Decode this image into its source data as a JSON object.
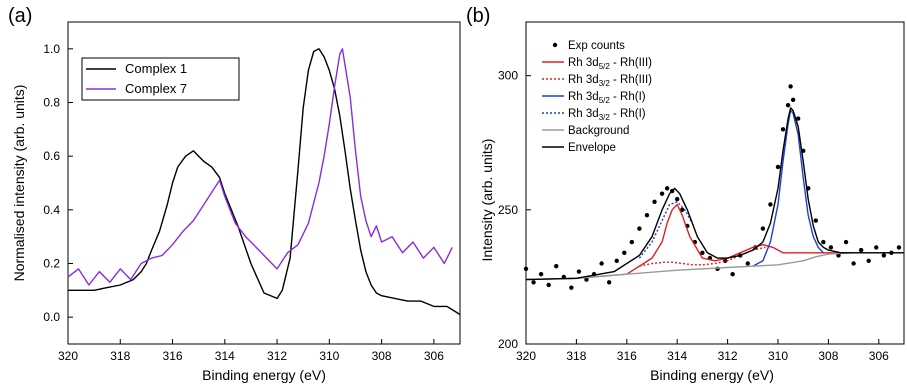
{
  "chart_data": [
    {
      "panel_label": "(a)",
      "type": "line",
      "xlabel": "Binding energy (eV)",
      "ylabel": "Normalised intensity (arb. units)",
      "xlim": [
        320,
        305
      ],
      "ylim": [
        -0.1,
        1.1
      ],
      "xticks": [
        320,
        318,
        316,
        314,
        312,
        310,
        308,
        306
      ],
      "yticks": [
        0.0,
        0.2,
        0.4,
        0.6,
        0.8,
        1.0
      ],
      "ytick_labels": [
        "0.0",
        "0.2",
        "0.4",
        "0.6",
        "0.8",
        "1.0"
      ],
      "legend_position": "top-left",
      "series": [
        {
          "name": "Complex 1",
          "color": "#000000",
          "x": [
            320,
            319.5,
            319,
            318.5,
            318,
            317.5,
            317.2,
            317,
            316.8,
            316.5,
            316.2,
            316,
            315.8,
            315.5,
            315.2,
            315,
            314.8,
            314.5,
            314.2,
            314,
            313.5,
            313,
            312.5,
            312,
            311.8,
            311.5,
            311.2,
            311,
            310.8,
            310.6,
            310.4,
            310.2,
            310,
            309.8,
            309.6,
            309.4,
            309.2,
            309,
            308.8,
            308.6,
            308.4,
            308.2,
            308,
            307.5,
            307,
            306.5,
            306,
            305.5,
            305
          ],
          "values": [
            0.1,
            0.1,
            0.1,
            0.11,
            0.12,
            0.14,
            0.17,
            0.2,
            0.25,
            0.32,
            0.42,
            0.5,
            0.56,
            0.6,
            0.62,
            0.6,
            0.58,
            0.56,
            0.52,
            0.46,
            0.34,
            0.2,
            0.09,
            0.07,
            0.1,
            0.22,
            0.55,
            0.78,
            0.92,
            0.99,
            1.0,
            0.97,
            0.92,
            0.85,
            0.75,
            0.62,
            0.48,
            0.36,
            0.25,
            0.17,
            0.12,
            0.09,
            0.08,
            0.07,
            0.06,
            0.06,
            0.04,
            0.04,
            0.01
          ]
        },
        {
          "name": "Complex 7",
          "color": "#8B2BE2",
          "x": [
            320,
            319.6,
            319.2,
            318.8,
            318.4,
            318,
            317.6,
            317.2,
            316.8,
            316.4,
            316,
            315.6,
            315.2,
            314.8,
            314.4,
            314.2,
            314,
            313.8,
            313.6,
            313.2,
            312.8,
            312.4,
            312,
            311.6,
            311.2,
            310.8,
            310.4,
            310.2,
            310,
            309.8,
            309.6,
            309.5,
            309.4,
            309.2,
            309,
            308.8,
            308.6,
            308.4,
            308.2,
            308,
            307.6,
            307.2,
            306.8,
            306.4,
            306,
            305.6,
            305.3
          ],
          "values": [
            0.15,
            0.18,
            0.12,
            0.17,
            0.13,
            0.18,
            0.14,
            0.2,
            0.22,
            0.23,
            0.27,
            0.32,
            0.36,
            0.42,
            0.48,
            0.51,
            0.45,
            0.4,
            0.35,
            0.3,
            0.26,
            0.22,
            0.18,
            0.24,
            0.27,
            0.35,
            0.5,
            0.6,
            0.72,
            0.86,
            0.98,
            1.0,
            0.94,
            0.82,
            0.62,
            0.45,
            0.36,
            0.3,
            0.34,
            0.28,
            0.3,
            0.24,
            0.28,
            0.22,
            0.26,
            0.2,
            0.26
          ]
        }
      ]
    },
    {
      "panel_label": "(b)",
      "type": "line",
      "xlabel": "Binding energy (eV)",
      "ylabel": "Intensity (arb. units)",
      "xlim": [
        320,
        305
      ],
      "ylim": [
        200,
        320
      ],
      "xticks": [
        320,
        318,
        316,
        314,
        312,
        310,
        308,
        306
      ],
      "yticks": [
        200,
        250,
        300
      ],
      "legend_position": "top-left",
      "series": [
        {
          "name": "Exp counts",
          "color": "#000000",
          "style": "points",
          "x": [
            320,
            319.7,
            319.4,
            319.1,
            318.8,
            318.5,
            318.2,
            317.9,
            317.6,
            317.3,
            317.0,
            316.7,
            316.4,
            316.1,
            315.8,
            315.5,
            315.2,
            314.9,
            314.6,
            314.4,
            314.2,
            314.0,
            313.8,
            313.6,
            313.3,
            313.0,
            312.7,
            312.4,
            312.1,
            311.8,
            311.5,
            311.2,
            310.9,
            310.6,
            310.3,
            310.0,
            309.8,
            309.6,
            309.5,
            309.4,
            309.2,
            309.0,
            308.8,
            308.5,
            308.2,
            307.9,
            307.6,
            307.3,
            307.0,
            306.7,
            306.4,
            306.1,
            305.8,
            305.5,
            305.2
          ],
          "values": [
            228,
            223,
            226,
            222,
            229,
            225,
            221,
            227,
            224,
            226,
            230,
            223,
            231,
            234,
            238,
            243,
            248,
            253,
            256,
            258,
            257,
            254,
            250,
            244,
            238,
            234,
            232,
            228,
            231,
            226,
            233,
            230,
            236,
            243,
            252,
            266,
            280,
            289,
            296,
            291,
            284,
            272,
            258,
            246,
            238,
            236,
            233,
            238,
            230,
            235,
            231,
            236,
            233,
            234,
            236
          ]
        },
        {
          "name": "Rh 3d5/2 - Rh(III)",
          "label_main": "Rh 3d",
          "label_sub": "5/2",
          "label_rest": " - Rh(III)",
          "color": "#E02020",
          "style": "solid",
          "x": [
            320,
            318,
            316,
            315,
            314.6,
            314.4,
            314.2,
            314.0,
            313.8,
            313.5,
            313.0,
            312.5,
            312,
            311.5,
            311.0,
            310.6,
            310.2,
            309.8,
            309.4,
            309,
            308.5,
            308,
            307.5,
            307,
            306,
            305
          ],
          "values": [
            224,
            224.5,
            226,
            232,
            238,
            245,
            250,
            252,
            248,
            240,
            232,
            231,
            232,
            234,
            236,
            237,
            236,
            234,
            234,
            234,
            234,
            234,
            234,
            234,
            234,
            234
          ]
        },
        {
          "name": "Rh 3d3/2 - Rh(III)",
          "label_main": "Rh 3d",
          "label_sub": "3/2",
          "label_rest": " - Rh(III)",
          "color": "#E02020",
          "style": "dotted",
          "x": [
            315.5,
            315.0,
            314.5,
            314.2,
            313.8,
            313.4,
            313,
            312.5,
            312,
            311.5,
            311,
            310.5
          ],
          "values": [
            229,
            230,
            230.5,
            230.5,
            230,
            229.5,
            229.5,
            230,
            231,
            233,
            235,
            236
          ]
        },
        {
          "name": "Rh 3d5/2 - Rh(I)",
          "label_main": "Rh 3d",
          "label_sub": "5/2",
          "label_rest": " - Rh(I)",
          "color": "#1F3FD0",
          "style": "solid",
          "x": [
            311.0,
            310.6,
            310.3,
            310.0,
            309.8,
            309.6,
            309.5,
            309.4,
            309.2,
            309.0,
            308.8,
            308.6,
            308.4,
            308.2
          ],
          "values": [
            229,
            231,
            238,
            252,
            268,
            282,
            287,
            286,
            278,
            262,
            248,
            240,
            236,
            234
          ]
        },
        {
          "name": "Rh 3d3/2 - Rh(I)",
          "label_main": "Rh 3d",
          "label_sub": "3/2",
          "label_rest": " - Rh(I)",
          "color": "#1F3FD0",
          "style": "dotted",
          "x": [
            315.5,
            315.0,
            314.6,
            314.3,
            314.0,
            313.7,
            313.4
          ],
          "values": [
            232,
            238,
            246,
            252,
            253,
            250,
            245
          ]
        },
        {
          "name": "Background",
          "color": "#9A9A9A",
          "style": "solid",
          "x": [
            320,
            318,
            316,
            314,
            312,
            311,
            310,
            309,
            308.5,
            308,
            307,
            306,
            305
          ],
          "values": [
            224,
            224.5,
            226,
            227.5,
            228.5,
            229,
            229.5,
            231,
            232.5,
            233.5,
            234,
            234,
            234
          ]
        },
        {
          "name": "Envelope",
          "color": "#000000",
          "style": "solid",
          "x": [
            320,
            318,
            316.5,
            315.5,
            315.0,
            314.6,
            314.3,
            314.1,
            313.9,
            313.6,
            313.2,
            312.8,
            312.4,
            312.0,
            311.5,
            311.0,
            310.6,
            310.3,
            310.0,
            309.8,
            309.6,
            309.5,
            309.4,
            309.2,
            309.0,
            308.8,
            308.6,
            308.4,
            308.2,
            308.0,
            307.5,
            307,
            306,
            305
          ],
          "values": [
            224,
            224.5,
            227,
            233,
            240,
            250,
            256,
            258,
            256,
            250,
            240,
            234,
            232,
            232,
            233,
            235,
            238,
            245,
            258,
            272,
            284,
            288,
            287,
            281,
            268,
            254,
            244,
            238,
            236,
            235,
            234,
            234,
            234,
            234
          ]
        }
      ]
    }
  ]
}
